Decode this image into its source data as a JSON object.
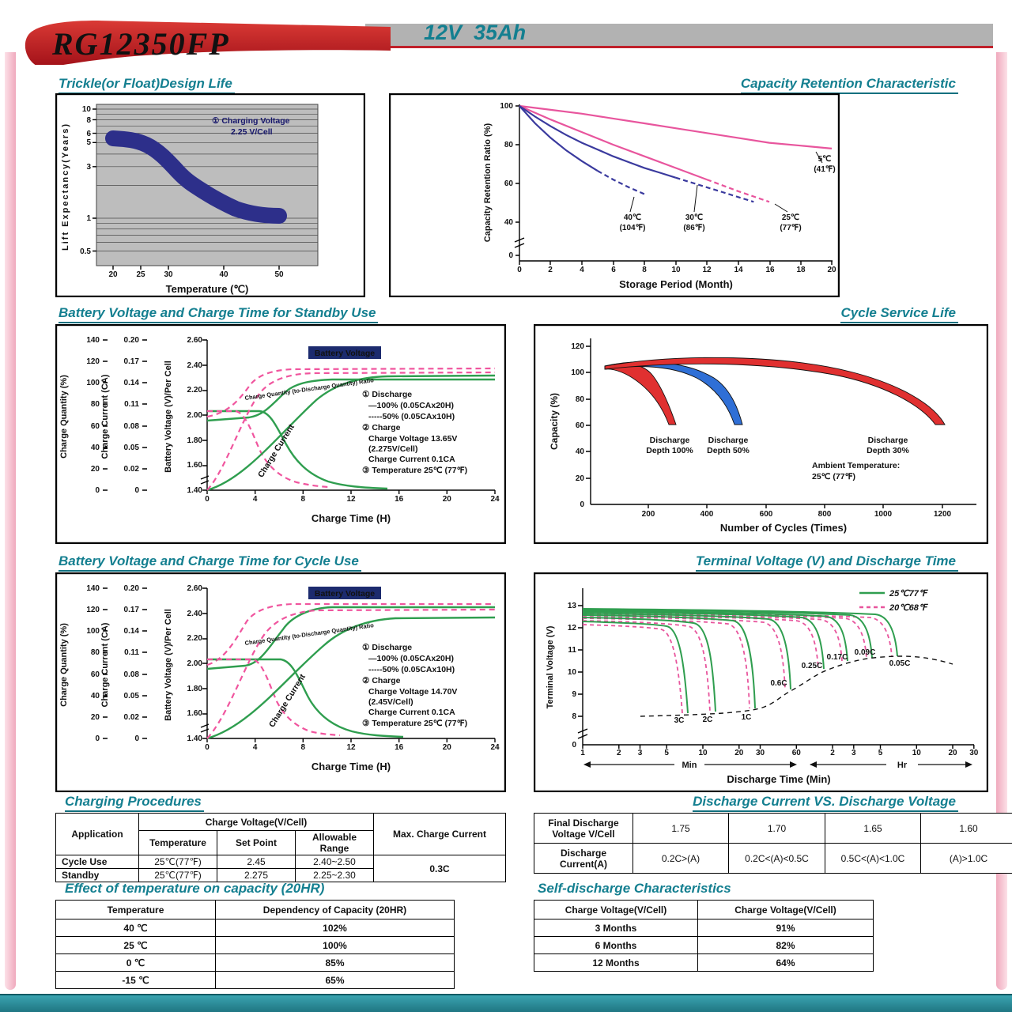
{
  "header": {
    "model": "RG12350FP",
    "spec": "12V  35Ah"
  },
  "chart_data": [
    {
      "id": "trickle_design_life",
      "type": "area",
      "title": "Trickle(or Float)Design Life",
      "xlabel": "Temperature (℃)",
      "ylabel": "Lift  Expectancy(Years)",
      "x_ticks": [
        "20",
        "25",
        "30",
        "40",
        "50"
      ],
      "y_ticks": [
        "10",
        "8",
        "6",
        "5",
        "3",
        "1",
        "0.5"
      ],
      "y_scale": "log",
      "annotation_line1": "① Charging Voltage",
      "annotation_line2": "2.25 V/Cell",
      "band": {
        "color": "#2d2f8a",
        "temperature": [
          20,
          25,
          28,
          32,
          36,
          40,
          45,
          50
        ],
        "years_mid": [
          5.4,
          5.0,
          3.9,
          2.6,
          1.8,
          1.3,
          1.1,
          1.05
        ]
      }
    },
    {
      "id": "capacity_retention",
      "type": "line",
      "title": "Capacity Retention Characteristic",
      "xlabel": "Storage Period (Month)",
      "ylabel": "Capacity Retention Ratio (%)",
      "x_ticks": [
        "0",
        "2",
        "4",
        "6",
        "8",
        "10",
        "12",
        "14",
        "16",
        "18",
        "20"
      ],
      "y_ticks": [
        "100",
        "80",
        "60",
        "40",
        "0"
      ],
      "series": [
        {
          "name": "5℃ (41℉)",
          "label_top": "5℃",
          "label_bottom": "(41℉)",
          "color": "#e8559d",
          "x": [
            0,
            2,
            4,
            6,
            8,
            10,
            12,
            14,
            16,
            18,
            20
          ],
          "y": [
            100,
            98,
            96,
            93.5,
            91,
            88.5,
            86,
            83.5,
            81,
            79.5,
            78
          ]
        },
        {
          "name": "25℃ (77℉)",
          "label_top": "25℃",
          "label_bottom": "(77℉)",
          "color": "#e8559d",
          "dash_from": 6,
          "x": [
            0,
            2,
            4,
            6,
            8,
            10,
            12,
            14,
            16
          ],
          "y": [
            100,
            93,
            86.5,
            80,
            74,
            68,
            62,
            56,
            50.5
          ]
        },
        {
          "name": "30℃ (86℉)",
          "label_top": "30℃",
          "label_bottom": "(86℉)",
          "color": "#3a3a9e",
          "dash_from": 10,
          "x": [
            0,
            1,
            2,
            3,
            4,
            5,
            6,
            7,
            8,
            9,
            10,
            11,
            12,
            13,
            14,
            15
          ],
          "y": [
            100,
            94.5,
            89.5,
            85,
            81,
            77.5,
            74,
            71,
            68,
            65.5,
            63,
            60.5,
            58,
            55.5,
            53,
            50.5
          ]
        },
        {
          "name": "40℃ (104℉)",
          "label_top": "40℃",
          "label_bottom": "(104℉)",
          "color": "#3a3a9e",
          "dash_from": 5,
          "x": [
            0,
            1,
            2,
            3,
            4,
            5,
            6,
            7,
            8
          ],
          "y": [
            100,
            91,
            83.5,
            77,
            71.5,
            66.5,
            62,
            58,
            54.5
          ]
        }
      ]
    },
    {
      "id": "standby_charge",
      "type": "line",
      "title": "Battery Voltage and Charge Time for Standby Use",
      "xlabel": "Charge Time (H)",
      "x_ticks": [
        "0",
        "4",
        "8",
        "12",
        "16",
        "20",
        "24"
      ],
      "axes": [
        {
          "label": "Charge Quantity (%)",
          "ticks": [
            "140",
            "120",
            "100",
            "80",
            "60",
            "40",
            "20",
            "0"
          ]
        },
        {
          "label": "Charge Current (CA)",
          "ticks": [
            "0.20",
            "0.17",
            "0.14",
            "0.11",
            "0.08",
            "0.05",
            "0.02",
            "0"
          ]
        },
        {
          "label": "Battery Voltage (V)/Per Cell",
          "ticks": [
            "2.60",
            "2.40",
            "2.20",
            "2.00",
            "1.80",
            "1.60",
            "1.40"
          ]
        }
      ],
      "curve_labels": {
        "voltage": "Battery Voltage",
        "quantity": "Charge Quantity (to-Discharge Quantity) Ratio",
        "current": "Charge Current"
      },
      "notes": [
        "① Discharge",
        "—100% (0.05CAx20H)",
        "-----50% (0.05CAx10H)",
        "② Charge",
        "Charge Voltage 13.65V",
        "(2.275V/Cell)",
        "Charge Current 0.1CA",
        "③ Temperature 25℃ (77℉)"
      ]
    },
    {
      "id": "cycle_service_life",
      "type": "area",
      "title": "Cycle Service Life",
      "xlabel": "Number of Cycles (Times)",
      "ylabel": "Capacity (%)",
      "x_ticks": [
        "200",
        "400",
        "600",
        "800",
        "1000",
        "1200"
      ],
      "y_ticks": [
        "120",
        "100",
        "80",
        "60",
        "40",
        "20",
        "0"
      ],
      "regions": [
        {
          "line1": "Discharge",
          "line2": "Depth 100%",
          "color": "#e03030",
          "cycles_to_60pct": 290
        },
        {
          "line1": "Discharge",
          "line2": "Depth 50%",
          "color": "#2f6fd6",
          "cycles_to_60pct": 520
        },
        {
          "line1": "Discharge",
          "line2": "Depth 30%",
          "color": "#e03030",
          "cycles_to_60pct": 1200
        }
      ],
      "note_line1": "Ambient Temperature:",
      "note_line2": "25℃  (77℉)"
    },
    {
      "id": "cycle_charge",
      "type": "line",
      "title": "Battery Voltage and Charge Time for Cycle Use",
      "xlabel": "Charge Time (H)",
      "x_ticks": [
        "0",
        "4",
        "8",
        "12",
        "16",
        "20",
        "24"
      ],
      "axes": [
        {
          "label": "Charge Quantity (%)",
          "ticks": [
            "140",
            "120",
            "100",
            "80",
            "60",
            "40",
            "20",
            "0"
          ]
        },
        {
          "label": "Charge Current (CA)",
          "ticks": [
            "0.20",
            "0.17",
            "0.14",
            "0.11",
            "0.08",
            "0.05",
            "0.02",
            "0"
          ]
        },
        {
          "label": "Battery Voltage (V)/Per Cell",
          "ticks": [
            "2.60",
            "2.40",
            "2.20",
            "2.00",
            "1.80",
            "1.60",
            "1.40"
          ]
        }
      ],
      "curve_labels": {
        "voltage": "Battery Voltage",
        "quantity": "Charge Quantity (to-Discharge Quantity) Ratio",
        "current": "Charge Current"
      },
      "notes": [
        "① Discharge",
        "—100% (0.05CAx20H)",
        "-----50% (0.05CAx10H)",
        "② Charge",
        "Charge Voltage 14.70V",
        "(2.45V/Cell)",
        "Charge Current 0.1CA",
        "③ Temperature 25℃ (77℉)"
      ]
    },
    {
      "id": "terminal_voltage_discharge_time",
      "type": "line",
      "title": "Terminal Voltage (V) and Discharge Time",
      "xlabel": "Discharge Time (Min)",
      "ylabel": "Terminal Voltage (V)",
      "y_ticks": [
        "13",
        "12",
        "11",
        "10",
        "9",
        "8",
        "0"
      ],
      "x_ticks_min": [
        "1",
        "2",
        "3",
        "5",
        "10",
        "20",
        "30",
        "60"
      ],
      "x_ticks_hr": [
        "2",
        "3",
        "5",
        "10",
        "20",
        "30"
      ],
      "unit_min": "Min",
      "unit_hr": "Hr",
      "legend": [
        {
          "name": "25℃77℉",
          "color": "#2f9e4f",
          "style": "solid"
        },
        {
          "name": "20℃68℉",
          "color": "#e8559d",
          "style": "dashed"
        }
      ],
      "rate_labels": [
        "3C",
        "2C",
        "1C",
        "0.6C",
        "0.25C",
        "0.17C",
        "0.09C",
        "0.05C"
      ]
    }
  ],
  "tables": {
    "charging_procedures": {
      "title": "Charging Procedures",
      "col_application": "Application",
      "col_charge_voltage": "Charge Voltage(V/Cell)",
      "col_temperature": "Temperature",
      "col_set_point": "Set Point",
      "col_allowable_range": "Allowable Range",
      "col_max_current": "Max. Charge Current",
      "rows": [
        {
          "application": "Cycle Use",
          "temperature": "25℃(77℉)",
          "set_point": "2.45",
          "allowable_range": "2.40~2.50"
        },
        {
          "application": "Standby",
          "temperature": "25℃(77℉)",
          "set_point": "2.275",
          "allowable_range": "2.25~2.30"
        }
      ],
      "max_current_value": "0.3C"
    },
    "discharge_current_voltage": {
      "title": "Discharge Current VS. Discharge Voltage",
      "row1_label": "Final Discharge\nVoltage V/Cell",
      "row1_values": [
        "1.75",
        "1.70",
        "1.65",
        "1.60"
      ],
      "row2_label": "Discharge\nCurrent(A)",
      "row2_values": [
        "0.2C>(A)",
        "0.2C<(A)<0.5C",
        "0.5C<(A)<1.0C",
        "(A)>1.0C"
      ]
    },
    "temperature_capacity": {
      "title": "Effect of temperature on capacity (20HR)",
      "col1": "Temperature",
      "col2": "Dependency of Capacity (20HR)",
      "rows": [
        {
          "temperature": "40 ℃",
          "capacity": "102%"
        },
        {
          "temperature": "25 ℃",
          "capacity": "100%"
        },
        {
          "temperature": "0 ℃",
          "capacity": "85%"
        },
        {
          "temperature": "-15 ℃",
          "capacity": "65%"
        }
      ]
    },
    "self_discharge": {
      "title": "Self-discharge Characteristics",
      "col1": "Charge Voltage(V/Cell)",
      "col2": "Charge Voltage(V/Cell)",
      "rows": [
        {
          "period": "3 Months",
          "value": "91%"
        },
        {
          "period": "6 Months",
          "value": "82%"
        },
        {
          "period": "12 Months",
          "value": "64%"
        }
      ]
    }
  }
}
